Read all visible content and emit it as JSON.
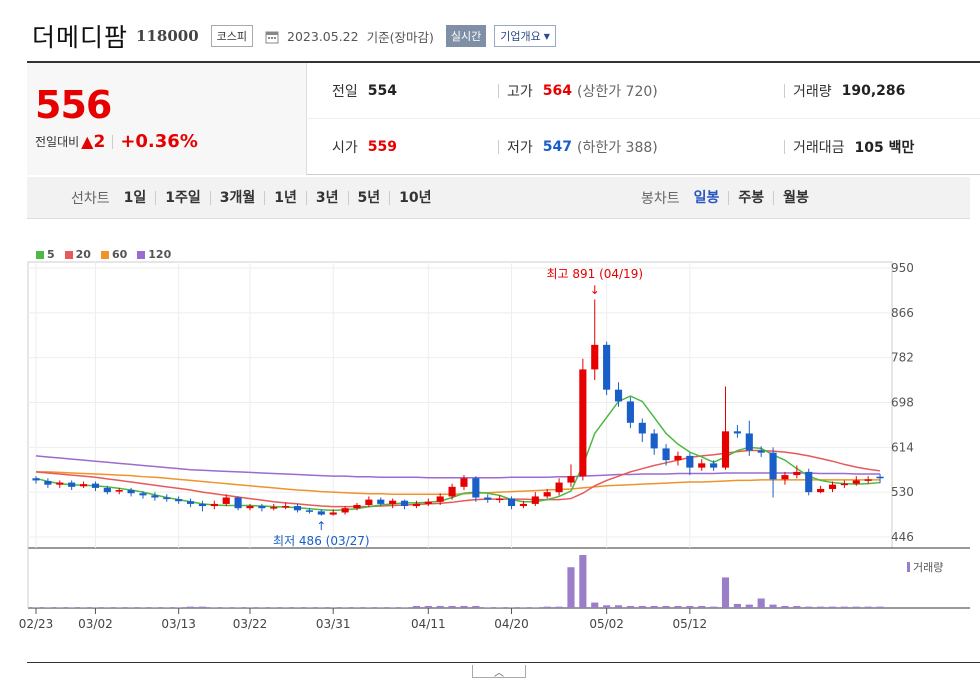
{
  "header": {
    "company_name": "더메디팜",
    "code": "118000",
    "market": "코스피",
    "date": "2023.05.22",
    "basis": "기준(장마감)",
    "live_label": "실시간",
    "overview_label": "기업개요"
  },
  "price": {
    "current": "556",
    "change_label": "전일대비",
    "change_value": "2",
    "change_pct": "+0.36%"
  },
  "stats": {
    "prev_label": "전일",
    "prev_value": "554",
    "high_label": "고가",
    "high_value": "564",
    "upper_limit": "(상한가 720)",
    "volume_label": "거래량",
    "volume_value": "190,286",
    "open_label": "시가",
    "open_value": "559",
    "low_label": "저가",
    "low_value": "547",
    "lower_limit": "(하한가 388)",
    "amount_label": "거래대금",
    "amount_value": "105 백만"
  },
  "tabs": {
    "line_label": "선차트",
    "line_tabs": [
      "1일",
      "1주일",
      "3개월",
      "1년",
      "3년",
      "5년",
      "10년"
    ],
    "candle_label": "봉차트",
    "candle_tabs": [
      "일봉",
      "주봉",
      "월봉"
    ],
    "active_candle": 0
  },
  "legend": [
    {
      "label": "5",
      "color": "#4cb944"
    },
    {
      "label": "20",
      "color": "#e85a5a"
    },
    {
      "label": "60",
      "color": "#f0932b"
    },
    {
      "label": "120",
      "color": "#9b6bd0"
    }
  ],
  "colors": {
    "up": "#e60000",
    "down": "#1a5ec8",
    "ma5": "#4cb944",
    "ma20": "#e85a5a",
    "ma60": "#f0932b",
    "ma120": "#9b6bd0",
    "volume": "#9b7ec8"
  },
  "chart_data": {
    "type": "candlestick",
    "y_ticks": [
      950,
      866,
      782,
      698,
      614,
      530,
      446
    ],
    "ylim": [
      446,
      950
    ],
    "x_labels": [
      "02/23",
      "03/02",
      "03/13",
      "03/22",
      "03/31",
      "04/11",
      "04/20",
      "05/02",
      "05/12"
    ],
    "high_annotation": "최고 891 (04/19)",
    "low_annotation": "최저 486 (03/27)",
    "volume_label": "거래량",
    "candles": [
      [
        556,
        552,
        560,
        546
      ],
      [
        551,
        544,
        556,
        538
      ],
      [
        544,
        548,
        552,
        538
      ],
      [
        548,
        540,
        552,
        534
      ],
      [
        541,
        545,
        550,
        538
      ],
      [
        546,
        538,
        550,
        532
      ],
      [
        538,
        530,
        542,
        526
      ],
      [
        531,
        534,
        538,
        526
      ],
      [
        534,
        528,
        538,
        522
      ],
      [
        528,
        524,
        532,
        518
      ],
      [
        524,
        520,
        530,
        514
      ],
      [
        520,
        517,
        526,
        512
      ],
      [
        517,
        513,
        522,
        508
      ],
      [
        513,
        508,
        518,
        502
      ],
      [
        508,
        504,
        514,
        494
      ],
      [
        504,
        508,
        514,
        498
      ],
      [
        508,
        520,
        526,
        504
      ],
      [
        520,
        500,
        522,
        496
      ],
      [
        500,
        504,
        508,
        496
      ],
      [
        504,
        500,
        508,
        494
      ],
      [
        500,
        502,
        508,
        496
      ],
      [
        502,
        504,
        510,
        498
      ],
      [
        504,
        496,
        508,
        492
      ],
      [
        496,
        494,
        500,
        490
      ],
      [
        494,
        488,
        498,
        486
      ],
      [
        488,
        492,
        498,
        486
      ],
      [
        492,
        500,
        504,
        488
      ],
      [
        500,
        506,
        510,
        496
      ],
      [
        506,
        516,
        522,
        502
      ],
      [
        516,
        508,
        520,
        504
      ],
      [
        508,
        514,
        518,
        500
      ],
      [
        514,
        504,
        516,
        498
      ],
      [
        504,
        508,
        514,
        500
      ],
      [
        508,
        512,
        518,
        504
      ],
      [
        512,
        522,
        528,
        506
      ],
      [
        522,
        540,
        546,
        516
      ],
      [
        540,
        556,
        562,
        534
      ],
      [
        556,
        520,
        560,
        512
      ],
      [
        520,
        516,
        526,
        510
      ],
      [
        516,
        518,
        524,
        510
      ],
      [
        518,
        504,
        522,
        498
      ],
      [
        504,
        508,
        514,
        500
      ],
      [
        508,
        522,
        530,
        504
      ],
      [
        522,
        530,
        536,
        518
      ],
      [
        530,
        548,
        556,
        524
      ],
      [
        548,
        560,
        582,
        540
      ],
      [
        560,
        760,
        780,
        552
      ],
      [
        760,
        806,
        891,
        740
      ],
      [
        806,
        722,
        812,
        712
      ],
      [
        722,
        700,
        736,
        690
      ],
      [
        700,
        660,
        708,
        650
      ],
      [
        660,
        640,
        668,
        624
      ],
      [
        640,
        612,
        648,
        600
      ],
      [
        612,
        590,
        620,
        580
      ],
      [
        590,
        598,
        606,
        580
      ],
      [
        598,
        576,
        604,
        562
      ],
      [
        576,
        584,
        592,
        570
      ],
      [
        584,
        576,
        590,
        570
      ],
      [
        576,
        644,
        728,
        572
      ],
      [
        644,
        640,
        656,
        632
      ],
      [
        640,
        608,
        664,
        598
      ],
      [
        608,
        604,
        616,
        596
      ],
      [
        604,
        554,
        614,
        520
      ],
      [
        554,
        562,
        568,
        544
      ],
      [
        562,
        568,
        580,
        556
      ],
      [
        568,
        530,
        574,
        524
      ],
      [
        530,
        536,
        542,
        528
      ],
      [
        536,
        544,
        550,
        530
      ],
      [
        544,
        546,
        552,
        538
      ],
      [
        546,
        552,
        560,
        542
      ],
      [
        552,
        554,
        560,
        546
      ],
      [
        559,
        556,
        564,
        547
      ]
    ],
    "volumes": [
      1,
      1,
      1,
      1,
      1,
      1,
      1,
      1,
      1,
      1,
      1,
      1,
      1,
      2,
      2,
      1,
      1,
      1,
      1,
      1,
      1,
      1,
      1,
      1,
      1,
      1,
      1,
      1,
      1,
      1,
      1,
      1,
      3,
      3,
      3,
      3,
      3,
      3,
      1,
      1,
      1,
      1,
      1,
      2,
      2,
      60,
      78,
      8,
      4,
      4,
      3,
      3,
      3,
      3,
      3,
      3,
      3,
      2,
      45,
      6,
      5,
      14,
      5,
      3,
      3,
      2,
      2,
      2,
      2,
      2,
      2,
      2
    ],
    "ma5": [
      556,
      550,
      546,
      544,
      543,
      542,
      540,
      537,
      534,
      530,
      525,
      520,
      516,
      512,
      508,
      506,
      505,
      505,
      505,
      504,
      503,
      502,
      501,
      499,
      497,
      496,
      497,
      499,
      503,
      506,
      508,
      510,
      510,
      511,
      513,
      520,
      528,
      530,
      528,
      524,
      516,
      512,
      512,
      516,
      522,
      532,
      580,
      640,
      670,
      700,
      710,
      700,
      670,
      640,
      620,
      605,
      596,
      586,
      596,
      608,
      614,
      612,
      600,
      590,
      574,
      560,
      552,
      548,
      546,
      545,
      546,
      548
    ],
    "ma20": [
      568,
      566,
      564,
      562,
      560,
      558,
      555,
      552,
      549,
      546,
      543,
      540,
      537,
      534,
      530,
      527,
      524,
      521,
      518,
      515,
      512,
      510,
      508,
      506,
      504,
      503,
      503,
      503,
      503,
      504,
      505,
      506,
      507,
      508,
      509,
      511,
      514,
      516,
      517,
      517,
      517,
      517,
      516,
      516,
      516,
      518,
      528,
      542,
      552,
      560,
      568,
      574,
      580,
      585,
      590,
      595,
      598,
      600,
      603,
      606,
      608,
      608,
      607,
      605,
      602,
      598,
      593,
      588,
      582,
      577,
      573,
      570
    ],
    "ma60": [
      568,
      568,
      567,
      566,
      565,
      564,
      563,
      562,
      561,
      559,
      558,
      556,
      554,
      552,
      550,
      548,
      546,
      544,
      542,
      540,
      538,
      536,
      534,
      533,
      531,
      530,
      529,
      528,
      527,
      527,
      526,
      526,
      526,
      526,
      526,
      526,
      527,
      528,
      529,
      530,
      531,
      532,
      533,
      534,
      535,
      536,
      538,
      540,
      542,
      543,
      544,
      545,
      546,
      547,
      548,
      549,
      549,
      550,
      551,
      552,
      552,
      553,
      553,
      553,
      553,
      553,
      553,
      553,
      553,
      553,
      553,
      553
    ],
    "ma120": [
      598,
      596,
      594,
      592,
      590,
      588,
      586,
      584,
      582,
      580,
      578,
      576,
      574,
      572,
      571,
      570,
      569,
      568,
      567,
      566,
      565,
      564,
      563,
      562,
      561,
      560,
      560,
      559,
      559,
      558,
      558,
      558,
      558,
      557,
      557,
      557,
      557,
      557,
      557,
      557,
      558,
      558,
      558,
      558,
      559,
      559,
      560,
      561,
      562,
      563,
      563,
      564,
      564,
      564,
      565,
      565,
      565,
      565,
      566,
      566,
      566,
      566,
      566,
      566,
      566,
      566,
      565,
      565,
      565,
      564,
      564,
      564
    ]
  }
}
